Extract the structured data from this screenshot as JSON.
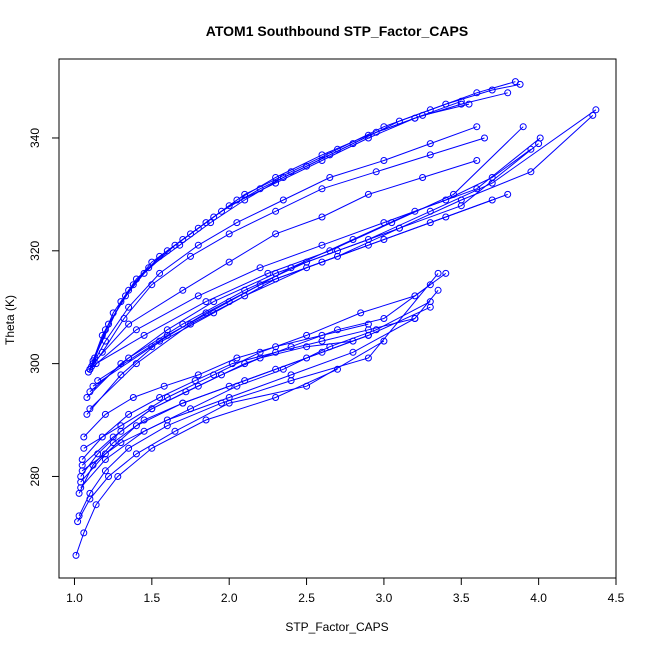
{
  "chart_data": {
    "type": "line",
    "title": "ATOM1 Southbound STP_Factor_CAPS",
    "xlabel": "STP_Factor_CAPS",
    "ylabel": "Theta (K)",
    "xlim": [
      0.9,
      4.5
    ],
    "ylim": [
      262,
      354
    ],
    "xticks": [
      1.0,
      1.5,
      2.0,
      2.5,
      3.0,
      3.5,
      4.0,
      4.5
    ],
    "xtick_labels": [
      "1.0",
      "1.5",
      "2.0",
      "2.5",
      "3.0",
      "3.5",
      "4.0",
      "4.5"
    ],
    "yticks": [
      280,
      300,
      320,
      340
    ],
    "ytick_labels": [
      "280",
      "300",
      "320",
      "340"
    ],
    "color": "#0000ff",
    "marker": "open-circle",
    "grid": false,
    "series": [
      {
        "x": [
          1.12,
          1.2,
          1.35,
          1.5,
          1.7,
          1.9,
          2.1,
          2.4,
          2.7,
          3.0,
          3.3,
          3.6,
          3.85
        ],
        "y": [
          300,
          306,
          313,
          318,
          322,
          326,
          330,
          334,
          338,
          342,
          345,
          348,
          350
        ]
      },
      {
        "x": [
          1.11,
          1.22,
          1.38,
          1.55,
          1.75,
          1.95,
          2.2,
          2.5,
          2.8,
          3.1,
          3.4,
          3.7,
          3.88
        ],
        "y": [
          299.5,
          307,
          314,
          319,
          323,
          327,
          331,
          335,
          339,
          343,
          346,
          348.5,
          349.5
        ]
      },
      {
        "x": [
          1.13,
          1.25,
          1.4,
          1.6,
          1.8,
          2.0,
          2.3,
          2.6,
          2.9,
          3.2,
          3.5,
          3.8
        ],
        "y": [
          301,
          309,
          315,
          320,
          324,
          328,
          332,
          336,
          340,
          343.5,
          346,
          348
        ]
      },
      {
        "x": [
          1.1,
          1.18,
          1.33,
          1.48,
          1.68,
          1.88,
          2.1,
          2.35,
          2.65,
          2.95,
          3.25,
          3.55
        ],
        "y": [
          299,
          305,
          312,
          317,
          321,
          325,
          329,
          333,
          337,
          341,
          344,
          346
        ]
      },
      {
        "x": [
          1.12,
          1.3,
          1.45,
          1.65,
          1.85,
          2.05,
          2.3,
          2.6,
          2.9,
          3.2,
          3.5
        ],
        "y": [
          300.5,
          311,
          316,
          321,
          325,
          329,
          333,
          337,
          340.5,
          343.5,
          346.5
        ]
      },
      {
        "x": [
          1.1,
          1.2,
          1.35,
          1.55,
          1.8,
          2.05,
          2.35,
          2.65,
          3.0,
          3.3,
          3.6
        ],
        "y": [
          299,
          304,
          310,
          316,
          321,
          325,
          329,
          333,
          336,
          339,
          342
        ]
      },
      {
        "x": [
          1.09,
          1.18,
          1.32,
          1.5,
          1.75,
          2.0,
          2.3,
          2.6,
          2.95,
          3.3,
          3.65
        ],
        "y": [
          298.5,
          302,
          308,
          314,
          319,
          323,
          327,
          331,
          334,
          337,
          340
        ]
      },
      {
        "x": [
          1.12,
          1.35,
          1.7,
          2.0,
          2.3,
          2.6,
          2.9,
          3.25,
          3.6
        ],
        "y": [
          300,
          307,
          313,
          318,
          323,
          326,
          330,
          333,
          336
        ]
      },
      {
        "x": [
          1.1,
          1.4,
          1.8,
          2.2,
          2.6,
          3.0,
          3.4,
          3.7,
          3.95
        ],
        "y": [
          299,
          306,
          312,
          317,
          321,
          325,
          329,
          333,
          338
        ]
      },
      {
        "x": [
          1.14,
          1.45,
          1.85,
          2.25,
          2.65,
          3.05,
          3.45,
          3.9
        ],
        "y": [
          300,
          305,
          311,
          316,
          320,
          325,
          330,
          342
        ]
      },
      {
        "x": [
          1.08,
          1.3,
          1.6,
          1.9,
          2.3,
          2.7,
          3.1,
          3.5,
          4.0
        ],
        "y": [
          294,
          300,
          306,
          311,
          316,
          320,
          324,
          328,
          339
        ]
      },
      {
        "x": [
          1.1,
          1.35,
          1.7,
          2.1,
          2.5,
          2.9,
          3.3,
          3.7,
          4.37
        ],
        "y": [
          295,
          301,
          307,
          313,
          318,
          322,
          327,
          332,
          345
        ]
      },
      {
        "x": [
          1.12,
          1.5,
          1.9,
          2.3,
          2.7,
          3.1,
          3.5,
          3.95,
          4.35
        ],
        "y": [
          296,
          303,
          309,
          315,
          319,
          324,
          329,
          334,
          344
        ]
      },
      {
        "x": [
          1.15,
          1.6,
          2.0,
          2.4,
          2.8,
          3.2,
          3.6,
          4.01
        ],
        "y": [
          297,
          305,
          311,
          317,
          322,
          327,
          331,
          340
        ]
      },
      {
        "x": [
          1.06,
          1.2,
          1.38,
          1.58,
          1.8,
          2.05,
          2.3,
          2.6,
          2.9
        ],
        "y": [
          287,
          291,
          294,
          296,
          298,
          301,
          303,
          305,
          307
        ]
      },
      {
        "x": [
          1.05,
          1.18,
          1.35,
          1.55,
          1.78,
          2.02,
          2.3,
          2.6,
          2.9,
          3.2
        ],
        "y": [
          283,
          287,
          291,
          294,
          297,
          300,
          302,
          304,
          306,
          308
        ]
      },
      {
        "x": [
          1.04,
          1.15,
          1.3,
          1.5,
          1.72,
          1.95,
          2.2,
          2.5,
          2.8
        ],
        "y": [
          280,
          284,
          288,
          292,
          295,
          298,
          301,
          303,
          304
        ]
      },
      {
        "x": [
          1.05,
          1.25,
          1.5,
          1.8,
          2.1,
          2.4,
          2.7,
          3.0,
          3.3
        ],
        "y": [
          282,
          287,
          292,
          296,
          300,
          303,
          306,
          308,
          314
        ]
      },
      {
        "x": [
          1.06,
          1.3,
          1.6,
          1.9,
          2.2,
          2.5,
          2.85,
          3.2,
          3.4
        ],
        "y": [
          285,
          289,
          294,
          298,
          302,
          305,
          309,
          312,
          316
        ]
      },
      {
        "x": [
          1.03,
          1.12,
          1.25,
          1.45,
          1.7,
          2.0,
          2.3,
          2.6,
          2.9
        ],
        "y": [
          277,
          282,
          286,
          290,
          293,
          296,
          299,
          302,
          305
        ]
      },
      {
        "x": [
          1.04,
          1.2,
          1.45,
          1.75,
          2.05,
          2.35,
          2.65,
          2.95,
          3.3
        ],
        "y": [
          278,
          283,
          288,
          292,
          296,
          299,
          303,
          306,
          311
        ]
      },
      {
        "x": [
          1.05,
          1.3,
          1.6,
          2.0,
          2.4,
          2.8,
          3.2,
          3.35
        ],
        "y": [
          281,
          286,
          290,
          294,
          298,
          302,
          308,
          313
        ]
      },
      {
        "x": [
          1.02,
          1.1,
          1.22,
          1.4,
          1.65,
          2.0,
          2.5,
          3.0
        ],
        "y": [
          272,
          276,
          280,
          284,
          288,
          293,
          296,
          304
        ]
      },
      {
        "x": [
          1.01,
          1.06,
          1.14,
          1.28,
          1.5,
          1.85,
          2.3,
          2.7
        ],
        "y": [
          266,
          270,
          275,
          280,
          285,
          290,
          294,
          299
        ]
      },
      {
        "x": [
          1.03,
          1.1,
          1.2,
          1.35,
          1.6,
          1.95,
          2.4,
          2.9,
          3.35
        ],
        "y": [
          273,
          277,
          281,
          285,
          289,
          293,
          297,
          301,
          316
        ]
      },
      {
        "x": [
          1.04,
          1.2,
          1.4,
          1.7,
          2.1,
          2.5,
          2.9,
          3.3
        ],
        "y": [
          279,
          284,
          289,
          293,
          297,
          301,
          305,
          310
        ]
      },
      {
        "x": [
          1.08,
          1.3,
          1.55,
          1.85,
          2.2,
          2.6,
          3.0,
          3.4,
          3.8
        ],
        "y": [
          291,
          298,
          304,
          309,
          314,
          318,
          322,
          326,
          330
        ]
      },
      {
        "x": [
          1.1,
          1.4,
          1.75,
          2.1,
          2.5,
          2.9,
          3.3,
          3.7
        ],
        "y": [
          292,
          300,
          307,
          312,
          317,
          321,
          325,
          329
        ]
      }
    ]
  }
}
